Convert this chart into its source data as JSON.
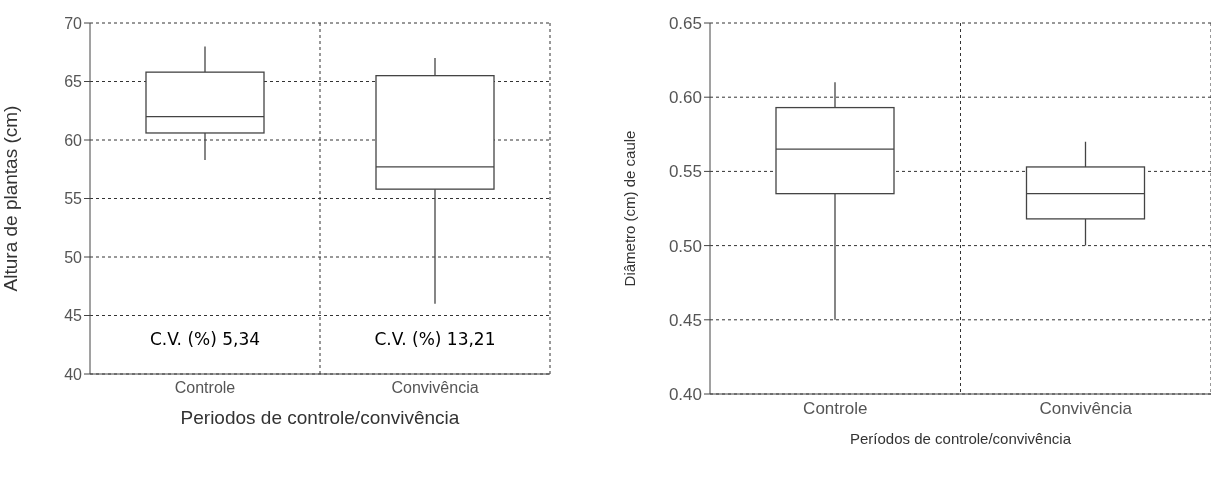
{
  "chart_data": [
    {
      "type": "box",
      "xlabel": "Periodos de controle/convivência",
      "ylabel": "Altura de plantas (cm)",
      "categories": [
        "Controle",
        "Convivência"
      ],
      "boxes": [
        {
          "low": 58.3,
          "q1": 60.6,
          "median": 62.0,
          "q3": 65.8,
          "high": 68.0
        },
        {
          "low": 46.0,
          "q1": 55.8,
          "median": 57.7,
          "q3": 65.5,
          "high": 67.0
        }
      ],
      "ylim": [
        40,
        70
      ],
      "yticks": [
        40,
        45,
        50,
        55,
        60,
        65,
        70
      ],
      "grid": true,
      "annotations": [
        "C.V. (%) 5,34",
        "C.V. (%) 13,21"
      ]
    },
    {
      "type": "box",
      "xlabel": "Períodos de controle/convivência",
      "ylabel": "Diâmetro (cm) de caule",
      "categories": [
        "Controle",
        "Convivência"
      ],
      "boxes": [
        {
          "low": 0.45,
          "q1": 0.535,
          "median": 0.565,
          "q3": 0.593,
          "high": 0.61
        },
        {
          "low": 0.5,
          "q1": 0.518,
          "median": 0.535,
          "q3": 0.553,
          "high": 0.57
        }
      ],
      "ylim": [
        0.4,
        0.65
      ],
      "yticks": [
        {
          "value": 0.4,
          "label": "0.40"
        },
        0.45,
        {
          "value": 0.5,
          "label": "0.50"
        },
        0.55,
        {
          "value": 0.6,
          "label": "0.60"
        },
        0.65
      ],
      "grid": true
    }
  ]
}
